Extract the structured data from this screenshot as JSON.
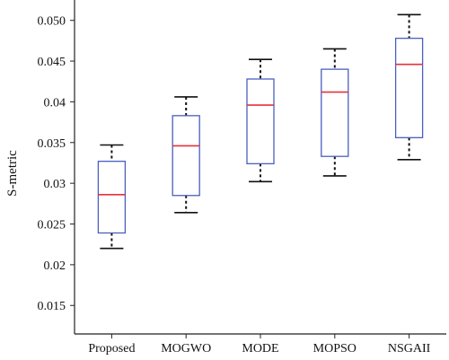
{
  "chart_data": {
    "type": "box",
    "title": "",
    "xlabel": "",
    "ylabel": "S-metric",
    "ylim": [
      0.0115,
      0.0525
    ],
    "yticks": [
      "0.015",
      "0.02",
      "0.025",
      "0.03",
      "0.035",
      "0.04",
      "0.045",
      "0.050"
    ],
    "yticks_values": [
      0.015,
      0.02,
      0.025,
      0.03,
      0.035,
      0.04,
      0.045,
      0.05
    ],
    "categories": [
      "Proposed",
      "MOGWO",
      "MODE",
      "MOPSO",
      "NSGAII"
    ],
    "boxes": [
      {
        "category": "Proposed",
        "min": 0.022,
        "q1": 0.0239,
        "median": 0.0286,
        "q3": 0.0327,
        "max": 0.0347
      },
      {
        "category": "MOGWO",
        "min": 0.0264,
        "q1": 0.0285,
        "median": 0.0346,
        "q3": 0.0383,
        "max": 0.0406
      },
      {
        "category": "MODE",
        "min": 0.0302,
        "q1": 0.0324,
        "median": 0.0396,
        "q3": 0.0428,
        "max": 0.0452
      },
      {
        "category": "MOPSO",
        "min": 0.0309,
        "q1": 0.0333,
        "median": 0.0412,
        "q3": 0.044,
        "max": 0.0465
      },
      {
        "category": "NSGAII",
        "min": 0.0329,
        "q1": 0.0356,
        "median": 0.0446,
        "q3": 0.0478,
        "max": 0.0507
      }
    ],
    "colors": {
      "box": "#4a5fc1",
      "median": "#e8303a",
      "whisker": "#111111",
      "axis": "#222222"
    },
    "grid": false
  }
}
